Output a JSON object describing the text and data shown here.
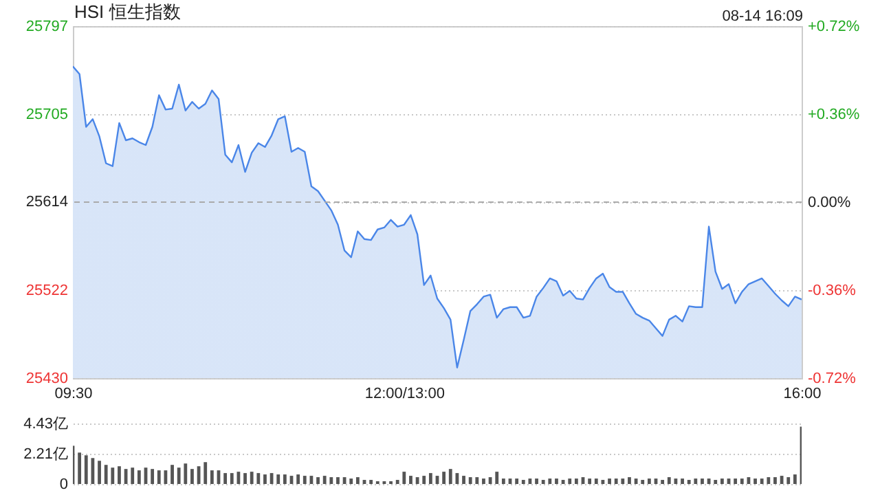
{
  "chart_data": [
    {
      "type": "area",
      "title": "HSI 恒生指数",
      "annotations": [
        "08-14 16:09"
      ],
      "categories": [
        "09:30",
        null,
        null,
        null,
        null,
        null,
        null,
        null,
        null,
        null,
        null,
        null,
        null,
        null,
        null,
        null,
        null,
        null,
        null,
        null,
        null,
        null,
        null,
        null,
        null,
        null,
        null,
        null,
        null,
        null,
        null,
        null,
        null,
        null,
        null,
        null,
        null,
        null,
        null,
        null,
        null,
        null,
        null,
        null,
        null,
        null,
        null,
        null,
        null,
        null,
        "12:00/13:00",
        null,
        null,
        null,
        null,
        null,
        null,
        null,
        null,
        null,
        null,
        null,
        null,
        null,
        null,
        null,
        null,
        null,
        null,
        null,
        null,
        null,
        null,
        null,
        null,
        null,
        null,
        null,
        null,
        null,
        null,
        null,
        null,
        null,
        null,
        null,
        null,
        null,
        null,
        null,
        null,
        null,
        null,
        null,
        null,
        null,
        null,
        null,
        null,
        null,
        null,
        null,
        null,
        null,
        null,
        null,
        null,
        null,
        null,
        null,
        "16:00"
      ],
      "series": [
        {
          "color": "#4a86e8",
          "values": [
            25755,
            25747,
            25692,
            25700,
            25682,
            25654,
            25651,
            25696,
            25678,
            25680,
            25676,
            25673,
            25692,
            25725,
            25710,
            25711,
            25736,
            25709,
            25718,
            25711,
            25716,
            25730,
            25721,
            25663,
            25655,
            25673,
            25645,
            25665,
            25675,
            25671,
            25683,
            25700,
            25703,
            25666,
            25670,
            25666,
            25630,
            25625,
            25615,
            25605,
            25590,
            25563,
            25556,
            25583,
            25575,
            25574,
            25585,
            25587,
            25595,
            25588,
            25590,
            25600,
            25580,
            25527,
            25537,
            25513,
            25503,
            25491,
            25441,
            25470,
            25500,
            25507,
            25515,
            25517,
            25493,
            25502,
            25504,
            25504,
            25493,
            25495,
            25515,
            25524,
            25534,
            25531,
            25516,
            25521,
            25513,
            25512,
            25524,
            25534,
            25539,
            25525,
            25520,
            25520,
            25508,
            25497,
            25493,
            25490,
            25482,
            25474,
            25491,
            25495,
            25489,
            25505,
            25504,
            25504,
            25588,
            25541,
            25523,
            25528,
            25508,
            25520,
            25528,
            25531,
            25534,
            25526,
            25518,
            25511,
            25505,
            25515,
            25512
          ]
        }
      ],
      "ylim": [
        25430,
        25797
      ],
      "yticks": [
        25430,
        25522,
        25614,
        25705,
        25797
      ],
      "y2lim": [
        -0.72,
        0.72
      ],
      "y2ticks": [
        {
          "value": -0.72,
          "label": "-0.72%"
        },
        {
          "value": -0.36,
          "label": "-0.36%"
        },
        {
          "value": 0,
          "label": "0.00%"
        },
        {
          "value": 0.36,
          "label": "+0.36%"
        },
        {
          "value": 0.72,
          "label": "+0.72%"
        }
      ],
      "ref_lines": [
        {
          "axis": "y2",
          "value": 0,
          "line_style": "dashed",
          "color": "#aaaaaa"
        }
      ],
      "grid": "y"
    },
    {
      "type": "bar",
      "tick_labels": "y",
      "grid": "y",
      "categories": [
        null,
        null,
        null,
        null,
        null,
        null,
        null,
        null,
        null,
        null,
        null,
        null,
        null,
        null,
        null,
        null,
        null,
        null,
        null,
        null,
        null,
        null,
        null,
        null,
        null,
        null,
        null,
        null,
        null,
        null,
        null,
        null,
        null,
        null,
        null,
        null,
        null,
        null,
        null,
        null,
        null,
        null,
        null,
        null,
        null,
        null,
        null,
        null,
        null,
        null,
        null,
        null,
        null,
        null,
        null,
        null,
        null,
        null,
        null,
        null,
        null,
        null,
        null,
        null,
        null,
        null,
        null,
        null,
        null,
        null,
        null,
        null,
        null,
        null,
        null,
        null,
        null,
        null,
        null,
        null,
        null,
        null,
        null,
        null,
        null,
        null,
        null,
        null,
        null,
        null,
        null,
        null,
        null,
        null,
        null,
        null,
        null,
        null,
        null,
        null,
        null,
        null,
        null,
        null,
        null,
        null,
        null,
        null,
        null,
        null,
        null
      ],
      "series": [
        {
          "color": "#555555",
          "values": [
            2.8,
            2.3,
            2.1,
            1.9,
            1.7,
            1.4,
            1.2,
            1.3,
            1.1,
            1.2,
            1.0,
            1.2,
            1.1,
            1.0,
            1.0,
            1.4,
            1.2,
            1.5,
            1.1,
            1.3,
            1.6,
            1.0,
            1.0,
            0.8,
            0.8,
            0.9,
            0.8,
            0.9,
            0.8,
            0.7,
            0.8,
            0.7,
            0.7,
            0.6,
            0.7,
            0.6,
            0.6,
            0.5,
            0.6,
            0.5,
            0.5,
            0.5,
            0.4,
            0.5,
            0.3,
            0.3,
            0.2,
            0.2,
            0.2,
            0.3,
            0.9,
            0.6,
            0.5,
            0.6,
            0.8,
            0.6,
            0.9,
            1.1,
            0.8,
            0.6,
            0.5,
            0.5,
            0.4,
            0.5,
            0.9,
            0.4,
            0.4,
            0.4,
            0.3,
            0.4,
            0.4,
            0.3,
            0.4,
            0.4,
            0.3,
            0.4,
            0.4,
            0.5,
            0.4,
            0.4,
            0.3,
            0.4,
            0.4,
            0.4,
            0.5,
            0.4,
            0.3,
            0.4,
            0.4,
            0.3,
            0.5,
            0.4,
            0.4,
            0.3,
            0.4,
            0.4,
            0.4,
            0.3,
            0.4,
            0.4,
            0.4,
            0.4,
            0.5,
            0.4,
            0.4,
            0.5,
            0.5,
            0.6,
            0.5,
            0.7,
            4.2
          ]
        }
      ],
      "ylim": [
        0,
        4.43
      ],
      "yticks": [
        0,
        {
          "value": 2.21,
          "label": "2.21亿"
        },
        {
          "value": 4.43,
          "label": "4.43亿"
        }
      ]
    }
  ]
}
